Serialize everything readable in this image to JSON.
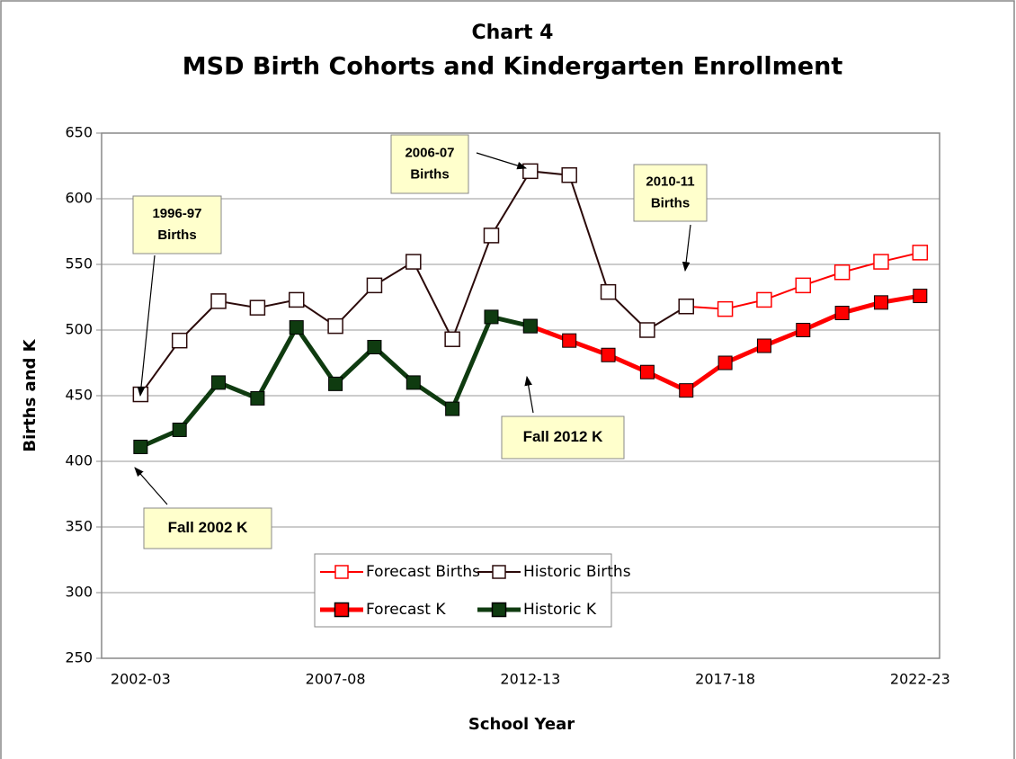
{
  "chart_data": {
    "type": "line",
    "title": "Chart 4",
    "subtitle": "MSD Birth Cohorts and Kindergarten Enrollment",
    "x_label": "School Year",
    "y_label": "Births and K",
    "categories": [
      "2002-03",
      null,
      null,
      null,
      null,
      "2007-08",
      null,
      null,
      null,
      null,
      "2012-13",
      null,
      null,
      null,
      null,
      "2017-18",
      null,
      null,
      null,
      null,
      "2022-23"
    ],
    "series": [
      {
        "name": "Forecast Births",
        "color": "#ff0000",
        "marker": "open",
        "width": 2,
        "values": [
          null,
          null,
          null,
          null,
          null,
          null,
          null,
          null,
          null,
          null,
          null,
          null,
          null,
          null,
          518,
          516,
          523,
          534,
          544,
          552,
          559
        ]
      },
      {
        "name": "Historic Births",
        "color": "#2b0a0a",
        "marker": "open",
        "width": 2,
        "values": [
          451,
          492,
          522,
          517,
          523,
          503,
          534,
          552,
          493,
          572,
          621,
          618,
          529,
          500,
          518,
          null,
          null,
          null,
          null,
          null,
          null
        ]
      },
      {
        "name": "Forecast K",
        "color": "#ff0000",
        "marker": "filled",
        "width": 5,
        "values": [
          null,
          null,
          null,
          null,
          null,
          null,
          null,
          null,
          null,
          null,
          503,
          492,
          481,
          468,
          454,
          475,
          488,
          500,
          513,
          521,
          526
        ]
      },
      {
        "name": "Historic K",
        "color": "#0f3b10",
        "marker": "filled",
        "width": 5,
        "values": [
          411,
          424,
          460,
          448,
          502,
          459,
          487,
          460,
          440,
          510,
          503,
          null,
          null,
          null,
          null,
          null,
          null,
          null,
          null,
          null,
          null
        ]
      }
    ],
    "ylim": [
      250,
      650
    ],
    "yticks": [
      250,
      300,
      350,
      400,
      450,
      500,
      550,
      600,
      650
    ],
    "grid": true,
    "annotations": [
      {
        "lines": [
          "1996-97",
          "Births"
        ]
      },
      {
        "lines": [
          "2006-07",
          "Births"
        ]
      },
      {
        "lines": [
          "2010-11",
          "Births"
        ]
      },
      {
        "lines": [
          "Fall 2012 K"
        ]
      },
      {
        "lines": [
          "Fall 2002 K"
        ]
      }
    ]
  }
}
